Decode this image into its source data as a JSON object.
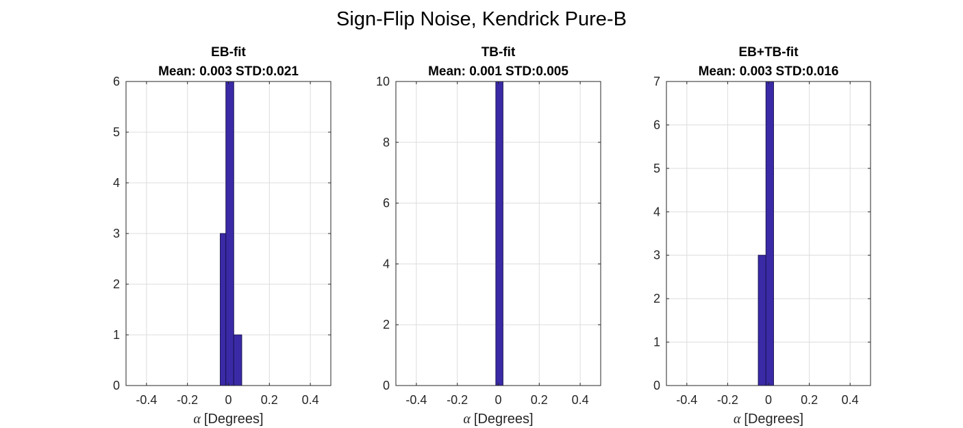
{
  "figure": {
    "suptitle": "Sign-Flip Noise, Kendrick Pure-B",
    "colors": {
      "bar_fill": "#3a2aa6",
      "bar_edge": "#1a1450",
      "grid": "#dcdcdc",
      "axis": "#262626"
    }
  },
  "chart_data": [
    {
      "type": "bar",
      "title": "EB-fit",
      "subtitle": "Mean: 0.003 STD:0.021",
      "xlabel_symbol": "α",
      "xlabel": "[Degrees]",
      "ylabel": "",
      "xlim": [
        -0.5,
        0.5
      ],
      "ylim": [
        0,
        6
      ],
      "xticks": [
        -0.4,
        -0.2,
        0,
        0.2,
        0.4
      ],
      "xtick_labels": [
        "-0.4",
        "-0.2",
        "0",
        "0.2",
        "0.4"
      ],
      "yticks": [
        0,
        1,
        2,
        3,
        4,
        5,
        6
      ],
      "ytick_labels": [
        "0",
        "1",
        "2",
        "3",
        "4",
        "5",
        "6"
      ],
      "grid": true,
      "bins": [
        {
          "x0": -0.04,
          "x1": -0.0125,
          "value": 3
        },
        {
          "x0": -0.0125,
          "x1": 0.026,
          "value": 6
        },
        {
          "x0": 0.026,
          "x1": 0.065,
          "value": 1
        }
      ]
    },
    {
      "type": "bar",
      "title": "TB-fit",
      "subtitle": "Mean: 0.001 STD:0.005",
      "xlabel_symbol": "α",
      "xlabel": "[Degrees]",
      "ylabel": "",
      "xlim": [
        -0.5,
        0.5
      ],
      "ylim": [
        0,
        10
      ],
      "xticks": [
        -0.4,
        -0.2,
        0,
        0.2,
        0.4
      ],
      "xtick_labels": [
        "-0.4",
        "-0.2",
        "0",
        "0.2",
        "0.4"
      ],
      "yticks": [
        0,
        2,
        4,
        6,
        8,
        10
      ],
      "ytick_labels": [
        "0",
        "2",
        "4",
        "6",
        "8",
        "10"
      ],
      "grid": true,
      "bins": [
        {
          "x0": -0.012,
          "x1": 0.023,
          "value": 10
        }
      ]
    },
    {
      "type": "bar",
      "title": "EB+TB-fit",
      "subtitle": "Mean: 0.003 STD:0.016",
      "xlabel_symbol": "α",
      "xlabel": "[Degrees]",
      "ylabel": "",
      "xlim": [
        -0.5,
        0.5
      ],
      "ylim": [
        0,
        7
      ],
      "xticks": [
        -0.4,
        -0.2,
        0,
        0.2,
        0.4
      ],
      "xtick_labels": [
        "-0.4",
        "-0.2",
        "0",
        "0.2",
        "0.4"
      ],
      "yticks": [
        0,
        1,
        2,
        3,
        4,
        5,
        6,
        7
      ],
      "ytick_labels": [
        "0",
        "1",
        "2",
        "3",
        "4",
        "5",
        "6",
        "7"
      ],
      "grid": true,
      "bins": [
        {
          "x0": -0.05,
          "x1": -0.0125,
          "value": 3
        },
        {
          "x0": -0.0125,
          "x1": 0.025,
          "value": 7
        }
      ]
    }
  ]
}
